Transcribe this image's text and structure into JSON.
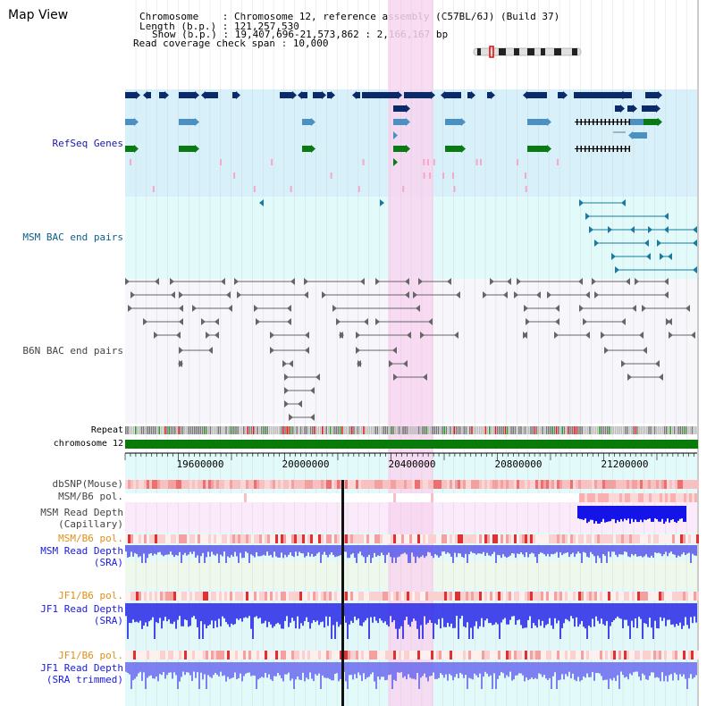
{
  "title": "Map View",
  "header": {
    "chromosome": "Chromosome    : Chromosome 12, reference assembly (C57BL/6J) (Build 37)",
    "length": "Length (b.p.) : 121,257,530",
    "show": "Show (b.p.) : 19,407,696-21,573,862 : 2,166,167 bp",
    "coverage": "Read coverage check span : 10,000"
  },
  "tracks": {
    "refseq": "RefSeq Genes",
    "msm_bac": "MSM BAC end pairs",
    "b6n_bac": "B6N BAC end pairs",
    "repeat": "Repeat",
    "chromosome": "chromosome 12",
    "dbsnp": "dbSNP(Mouse)",
    "msm_b6_pol_1": "MSM/B6 pol.",
    "msm_depth_cap_1": "MSM Read Depth",
    "msm_depth_cap_2": "(Capillary)",
    "msm_b6_pol_2": "MSM/B6 pol.",
    "msm_depth_sra_1": "MSM Read Depth",
    "msm_depth_sra_2": "(SRA)",
    "jf1_b6_pol_1": "JF1/B6 pol.",
    "jf1_depth_sra_1": "JF1 Read Depth",
    "jf1_depth_sra_2": "(SRA)",
    "jf1_b6_pol_2": "JF1/B6 pol.",
    "jf1_depth_trim_1": "JF1 Read Depth",
    "jf1_depth_trim_2": "(SRA trimmed)"
  },
  "axis": {
    "range_bp": [
      19407696,
      21573862
    ],
    "ticks": [
      "19600000",
      "20000000",
      "20400000",
      "20800000",
      "21200000"
    ]
  },
  "colors": {
    "refseq_bg": "#d8f0fa",
    "msm_bac_bg": "#e2fafa",
    "b6n_bac_bg": "#f6f6fb",
    "highlight": "#f8d6f0",
    "gene_navy": "#0b2a6a",
    "gene_blue": "#4a90c0",
    "gene_green": "#0a7a14",
    "chromosome_bar": "#0a7a0a",
    "depth_blue": "#2020e0"
  }
}
